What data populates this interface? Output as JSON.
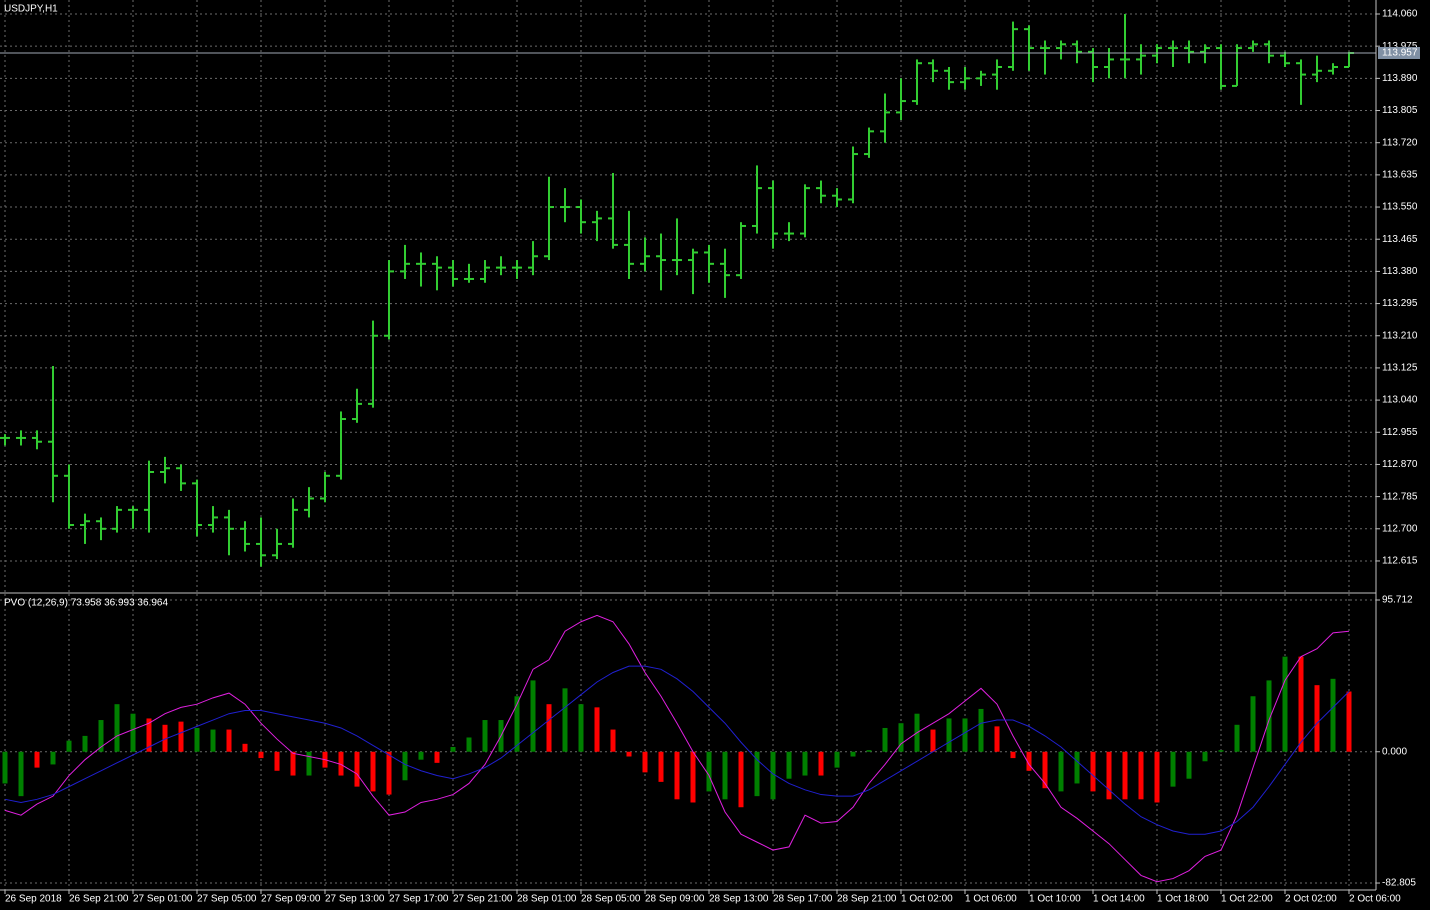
{
  "chart_data": [
    {
      "type": "ohlc",
      "title": "USDJPY,H1",
      "color": "#32cd32",
      "grid": true,
      "categories": [
        "26 Sep 2018",
        null,
        null,
        null,
        "26 Sep 21:00",
        null,
        null,
        null,
        "27 Sep 01:00",
        null,
        null,
        null,
        "27 Sep 05:00",
        null,
        null,
        null,
        "27 Sep 09:00",
        null,
        null,
        null,
        "27 Sep 13:00",
        null,
        null,
        null,
        "27 Sep 17:00",
        null,
        null,
        null,
        "27 Sep 21:00",
        null,
        null,
        null,
        "28 Sep 01:00",
        null,
        null,
        null,
        "28 Sep 05:00",
        null,
        null,
        null,
        "28 Sep 09:00",
        null,
        null,
        null,
        "28 Sep 13:00",
        null,
        null,
        null,
        "28 Sep 17:00",
        null,
        null,
        null,
        "28 Sep 21:00",
        null,
        null,
        null,
        "1 Oct 02:00",
        null,
        null,
        null,
        "1 Oct 06:00",
        null,
        null,
        null,
        "1 Oct 10:00",
        null,
        null,
        null,
        "1 Oct 14:00",
        null,
        null,
        null,
        "1 Oct 18:00",
        null,
        null,
        null,
        "1 Oct 22:00",
        null,
        null,
        null,
        "2 Oct 02:00",
        null,
        null,
        null,
        "2 Oct 06:00"
      ],
      "ohlc": [
        [
          112.94,
          112.95,
          112.92,
          112.94
        ],
        [
          112.94,
          112.96,
          112.92,
          112.94
        ],
        [
          112.94,
          112.96,
          112.91,
          112.93
        ],
        [
          112.93,
          113.13,
          112.77,
          112.84
        ],
        [
          112.84,
          112.87,
          112.7,
          112.71
        ],
        [
          112.71,
          112.74,
          112.66,
          112.72
        ],
        [
          112.72,
          112.73,
          112.67,
          112.7
        ],
        [
          112.7,
          112.76,
          112.69,
          112.75
        ],
        [
          112.75,
          112.76,
          112.7,
          112.75
        ],
        [
          112.75,
          112.88,
          112.69,
          112.85
        ],
        [
          112.85,
          112.89,
          112.82,
          112.86
        ],
        [
          112.86,
          112.87,
          112.8,
          112.82
        ],
        [
          112.82,
          112.83,
          112.68,
          112.71
        ],
        [
          112.71,
          112.76,
          112.69,
          112.73
        ],
        [
          112.73,
          112.75,
          112.63,
          112.7
        ],
        [
          112.7,
          112.72,
          112.64,
          112.66
        ],
        [
          112.66,
          112.73,
          112.6,
          112.63
        ],
        [
          112.63,
          112.7,
          112.62,
          112.66
        ],
        [
          112.66,
          112.78,
          112.65,
          112.75
        ],
        [
          112.75,
          112.81,
          112.73,
          112.78
        ],
        [
          112.78,
          112.85,
          112.77,
          112.84
        ],
        [
          112.84,
          113.01,
          112.83,
          112.99
        ],
        [
          112.99,
          113.07,
          112.98,
          113.03
        ],
        [
          113.03,
          113.25,
          113.02,
          113.21
        ],
        [
          113.21,
          113.41,
          113.2,
          113.38
        ],
        [
          113.38,
          113.45,
          113.36,
          113.4
        ],
        [
          113.4,
          113.43,
          113.34,
          113.4
        ],
        [
          113.4,
          113.42,
          113.33,
          113.39
        ],
        [
          113.39,
          113.41,
          113.34,
          113.36
        ],
        [
          113.36,
          113.4,
          113.35,
          113.36
        ],
        [
          113.36,
          113.41,
          113.35,
          113.39
        ],
        [
          113.39,
          113.42,
          113.37,
          113.39
        ],
        [
          113.39,
          113.41,
          113.36,
          113.39
        ],
        [
          113.39,
          113.46,
          113.37,
          113.42
        ],
        [
          113.42,
          113.63,
          113.41,
          113.55
        ],
        [
          113.55,
          113.6,
          113.51,
          113.55
        ],
        [
          113.55,
          113.57,
          113.48,
          113.51
        ],
        [
          113.51,
          113.54,
          113.46,
          113.52
        ],
        [
          113.52,
          113.64,
          113.44,
          113.45
        ],
        [
          113.45,
          113.54,
          113.36,
          113.4
        ],
        [
          113.4,
          113.47,
          113.38,
          113.42
        ],
        [
          113.42,
          113.48,
          113.33,
          113.41
        ],
        [
          113.41,
          113.52,
          113.37,
          113.41
        ],
        [
          113.41,
          113.44,
          113.32,
          113.43
        ],
        [
          113.43,
          113.45,
          113.35,
          113.4
        ],
        [
          113.4,
          113.44,
          113.31,
          113.37
        ],
        [
          113.37,
          113.51,
          113.36,
          113.5
        ],
        [
          113.5,
          113.66,
          113.48,
          113.6
        ],
        [
          113.6,
          113.62,
          113.44,
          113.48
        ],
        [
          113.48,
          113.51,
          113.46,
          113.48
        ],
        [
          113.48,
          113.61,
          113.47,
          113.6
        ],
        [
          113.6,
          113.62,
          113.56,
          113.58
        ],
        [
          113.58,
          113.6,
          113.55,
          113.57
        ],
        [
          113.57,
          113.71,
          113.56,
          113.69
        ],
        [
          113.69,
          113.76,
          113.68,
          113.75
        ],
        [
          113.75,
          113.85,
          113.72,
          113.8
        ],
        [
          113.8,
          113.89,
          113.78,
          113.83
        ],
        [
          113.83,
          113.94,
          113.82,
          113.93
        ],
        [
          113.93,
          113.94,
          113.88,
          113.91
        ],
        [
          113.91,
          113.92,
          113.86,
          113.88
        ],
        [
          113.88,
          113.92,
          113.86,
          113.89
        ],
        [
          113.89,
          113.91,
          113.87,
          113.9
        ],
        [
          113.9,
          113.94,
          113.86,
          113.92
        ],
        [
          113.92,
          114.04,
          113.91,
          114.02
        ],
        [
          114.02,
          114.03,
          113.91,
          113.97
        ],
        [
          113.97,
          113.99,
          113.9,
          113.97
        ],
        [
          113.97,
          113.99,
          113.94,
          113.98
        ],
        [
          113.98,
          113.99,
          113.93,
          113.96
        ],
        [
          113.96,
          113.97,
          113.88,
          113.92
        ],
        [
          113.92,
          113.97,
          113.89,
          113.94
        ],
        [
          113.94,
          114.06,
          113.89,
          113.94
        ],
        [
          113.94,
          113.98,
          113.9,
          113.95
        ],
        [
          113.95,
          113.98,
          113.93,
          113.97
        ],
        [
          113.97,
          113.99,
          113.92,
          113.97
        ],
        [
          113.97,
          113.99,
          113.93,
          113.96
        ],
        [
          113.96,
          113.98,
          113.93,
          113.97
        ],
        [
          113.97,
          113.98,
          113.86,
          113.87
        ],
        [
          113.87,
          113.98,
          113.87,
          113.97
        ],
        [
          113.97,
          113.99,
          113.96,
          113.98
        ],
        [
          113.98,
          113.99,
          113.93,
          113.95
        ],
        [
          113.95,
          113.96,
          113.92,
          113.93
        ],
        [
          113.93,
          113.94,
          113.82,
          113.9
        ],
        [
          113.9,
          113.95,
          113.88,
          113.91
        ],
        [
          113.91,
          113.93,
          113.9,
          113.92
        ],
        [
          113.92,
          113.96,
          113.92,
          113.957
        ]
      ],
      "ylim": [
        112.533,
        114.097
      ],
      "yticks": [
        {
          "value": 114.06,
          "label": "114.060"
        },
        {
          "value": 113.975,
          "label": "113.975"
        },
        {
          "value": 113.89,
          "label": "113.890"
        },
        {
          "value": 113.805,
          "label": "113.805"
        },
        {
          "value": 113.72,
          "label": "113.720"
        },
        {
          "value": 113.635,
          "label": "113.635"
        },
        {
          "value": 113.55,
          "label": "113.550"
        },
        {
          "value": 113.465,
          "label": "113.465"
        },
        {
          "value": 113.38,
          "label": "113.380"
        },
        {
          "value": 113.295,
          "label": "113.295"
        },
        {
          "value": 113.21,
          "label": "113.210"
        },
        {
          "value": 113.125,
          "label": "113.125"
        },
        {
          "value": 113.04,
          "label": "113.040"
        },
        {
          "value": 112.955,
          "label": "112.955"
        },
        {
          "value": 112.87,
          "label": "112.870"
        },
        {
          "value": 112.785,
          "label": "112.785"
        },
        {
          "value": 112.7,
          "label": "112.700"
        },
        {
          "value": 112.615,
          "label": "112.615"
        }
      ],
      "last_price": {
        "value": 113.957,
        "label": "113.957"
      }
    },
    {
      "type": "oscillator",
      "title": "PVO (12,26,9) 73.958 36.993 36.964",
      "grid": true,
      "histogram": {
        "values": [
          -20,
          -28,
          -10,
          -8,
          7,
          10,
          20,
          30,
          24,
          21,
          17,
          19,
          15,
          14,
          14,
          5,
          -4,
          -12,
          -15,
          -15,
          -10,
          -15,
          -22,
          -25,
          -27,
          -18,
          -5,
          -7,
          3,
          9,
          20,
          20,
          35,
          45,
          30,
          40,
          30,
          28,
          14,
          -3,
          -13,
          -19,
          -30,
          -32,
          -25,
          -30,
          -35,
          -28,
          -30,
          -17,
          -15,
          -15,
          -10,
          -3,
          1,
          15,
          18,
          24,
          14,
          21,
          21,
          27,
          16,
          -4,
          -12,
          -23,
          -25,
          -20,
          -25,
          -30,
          -30,
          -30,
          -32,
          -22,
          -17,
          -6,
          1,
          17,
          35,
          45,
          60,
          60,
          42,
          46,
          38
        ],
        "colors": [
          "#008000",
          "#008000",
          "#ff0000",
          "#008000",
          "#008000",
          "#008000",
          "#008000",
          "#008000",
          "#008000",
          "#ff0000",
          "#ff0000",
          "#ff0000",
          "#008000",
          "#008000",
          "#ff0000",
          "#ff0000",
          "#ff0000",
          "#ff0000",
          "#ff0000",
          "#008000",
          "#ff0000",
          "#ff0000",
          "#ff0000",
          "#ff0000",
          "#ff0000",
          "#008000",
          "#008000",
          "#ff0000",
          "#008000",
          "#008000",
          "#008000",
          "#008000",
          "#008000",
          "#008000",
          "#ff0000",
          "#008000",
          "#008000",
          "#ff0000",
          "#ff0000",
          "#ff0000",
          "#ff0000",
          "#ff0000",
          "#ff0000",
          "#ff0000",
          "#008000",
          "#008000",
          "#ff0000",
          "#008000",
          "#008000",
          "#008000",
          "#008000",
          "#ff0000",
          "#008000",
          "#008000",
          "#008000",
          "#008000",
          "#008000",
          "#008000",
          "#ff0000",
          "#008000",
          "#008000",
          "#008000",
          "#ff0000",
          "#ff0000",
          "#ff0000",
          "#ff0000",
          "#008000",
          "#008000",
          "#ff0000",
          "#ff0000",
          "#ff0000",
          "#ff0000",
          "#ff0000",
          "#008000",
          "#008000",
          "#008000",
          "#008000",
          "#008000",
          "#008000",
          "#008000",
          "#008000",
          "#ff0000",
          "#ff0000",
          "#008000",
          "#ff0000"
        ]
      },
      "series": [
        {
          "color": "#e020e0",
          "values": [
            -37,
            -40,
            -33,
            -28,
            -15,
            -5,
            3,
            10,
            14,
            18,
            24,
            28,
            30,
            34,
            37,
            30,
            18,
            8,
            -1,
            -3,
            -5,
            -8,
            -14,
            -28,
            -40,
            -38,
            -32,
            -30,
            -27,
            -20,
            -8,
            10,
            30,
            52,
            58,
            76,
            82,
            86,
            82,
            68,
            50,
            35,
            18,
            0,
            -15,
            -38,
            -52,
            -57,
            -62,
            -60,
            -40,
            -45,
            -44,
            -35,
            -20,
            -8,
            5,
            12,
            18,
            24,
            32,
            40,
            30,
            10,
            -8,
            -20,
            -35,
            -42,
            -50,
            -58,
            -68,
            -78,
            -82,
            -80,
            -75,
            -66,
            -62,
            -40,
            -10,
            20,
            45,
            60,
            65,
            75,
            76
          ]
        },
        {
          "color": "#2020d0",
          "values": [
            -30,
            -32,
            -30,
            -27,
            -22,
            -17,
            -12,
            -7,
            -2,
            3,
            8,
            12,
            16,
            20,
            24,
            26,
            26,
            24,
            22,
            20,
            18,
            15,
            10,
            4,
            -2,
            -8,
            -12,
            -15,
            -17,
            -14,
            -10,
            -4,
            4,
            12,
            20,
            28,
            36,
            44,
            50,
            54,
            54,
            52,
            46,
            38,
            28,
            18,
            6,
            -5,
            -14,
            -20,
            -24,
            -27,
            -28,
            -28,
            -24,
            -18,
            -12,
            -6,
            0,
            6,
            12,
            18,
            20,
            20,
            16,
            10,
            3,
            -6,
            -15,
            -24,
            -33,
            -41,
            -46,
            -50,
            -52,
            -52,
            -50,
            -44,
            -35,
            -22,
            -8,
            6,
            18,
            28,
            38
          ]
        }
      ],
      "ylim": [
        -87.2,
        99.5
      ],
      "yticks": [
        95.712,
        {
          "value": 0,
          "label": "0.000"
        },
        -82.805
      ]
    }
  ]
}
